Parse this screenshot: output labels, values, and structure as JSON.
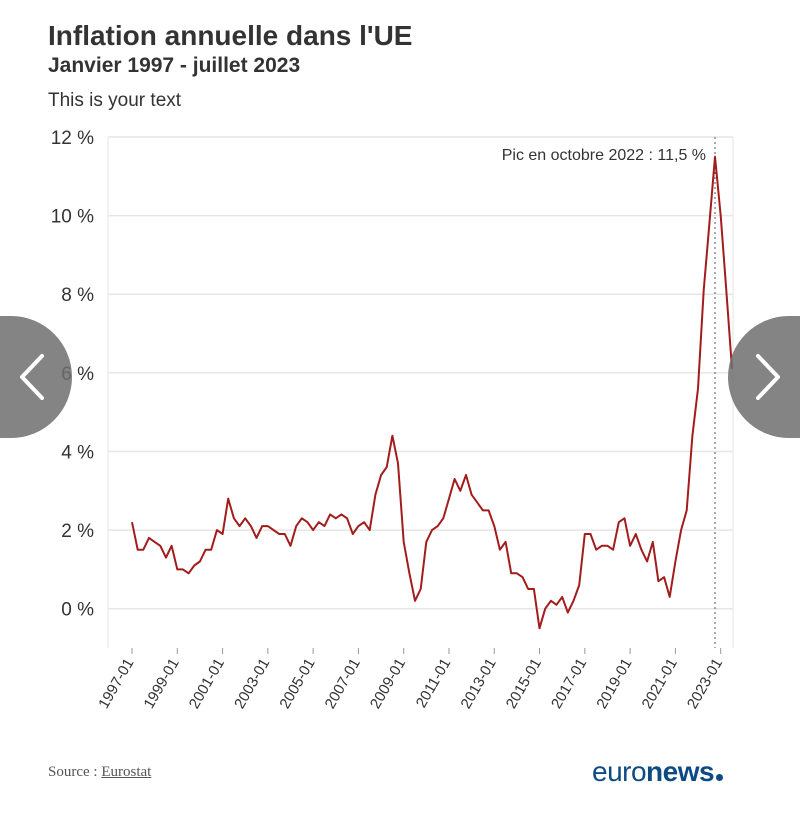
{
  "header": {
    "title": "Inflation annuelle dans l'UE",
    "subtitle": "Janvier 1997 - juillet 2023",
    "note": "This is your text"
  },
  "footer": {
    "source_prefix": "Source : ",
    "source_link": "Eurostat",
    "logo_light": "euro",
    "logo_bold": "news"
  },
  "colors": {
    "line": "#a31c1c",
    "grid": "#e6e6e6",
    "logo": "#0d4a84"
  },
  "navigation": {
    "prev_icon": "chevron-left-icon",
    "next_icon": "chevron-right-icon"
  },
  "chart_data": {
    "type": "line",
    "title": "Inflation annuelle dans l'UE",
    "subtitle": "Janvier 1997 - juillet 2023",
    "xlabel": "",
    "ylabel": "",
    "ylim": [
      -1,
      12
    ],
    "yticks": [
      0,
      2,
      4,
      6,
      8,
      10,
      12
    ],
    "ytick_labels": [
      "0 %",
      "2 %",
      "4 %",
      "6 %",
      "8 %",
      "10 %",
      "12 %"
    ],
    "xtick_labels": [
      "1997-01",
      "1999-01",
      "2001-01",
      "2003-01",
      "2005-01",
      "2007-01",
      "2009-01",
      "2011-01",
      "2013-01",
      "2015-01",
      "2017-01",
      "2019-01",
      "2021-01",
      "2023-01"
    ],
    "grid": true,
    "annotation": {
      "x": "2022-10",
      "y": 11.5,
      "text": "Pic en octobre 2022 : 11,5 %"
    },
    "series": [
      {
        "points": [
          [
            "1997-01",
            2.2
          ],
          [
            "1997-04",
            1.5
          ],
          [
            "1997-07",
            1.5
          ],
          [
            "1997-10",
            1.8
          ],
          [
            "1998-01",
            1.7
          ],
          [
            "1998-04",
            1.6
          ],
          [
            "1998-07",
            1.3
          ],
          [
            "1998-10",
            1.6
          ],
          [
            "1999-01",
            1.0
          ],
          [
            "1999-04",
            1.0
          ],
          [
            "1999-07",
            0.9
          ],
          [
            "1999-10",
            1.1
          ],
          [
            "2000-01",
            1.2
          ],
          [
            "2000-04",
            1.5
          ],
          [
            "2000-07",
            1.5
          ],
          [
            "2000-10",
            2.0
          ],
          [
            "2001-01",
            1.9
          ],
          [
            "2001-04",
            2.8
          ],
          [
            "2001-07",
            2.3
          ],
          [
            "2001-10",
            2.1
          ],
          [
            "2002-01",
            2.3
          ],
          [
            "2002-04",
            2.1
          ],
          [
            "2002-07",
            1.8
          ],
          [
            "2002-10",
            2.1
          ],
          [
            "2003-01",
            2.1
          ],
          [
            "2003-04",
            2.0
          ],
          [
            "2003-07",
            1.9
          ],
          [
            "2003-10",
            1.9
          ],
          [
            "2004-01",
            1.6
          ],
          [
            "2004-04",
            2.1
          ],
          [
            "2004-07",
            2.3
          ],
          [
            "2004-10",
            2.2
          ],
          [
            "2005-01",
            2.0
          ],
          [
            "2005-04",
            2.2
          ],
          [
            "2005-07",
            2.1
          ],
          [
            "2005-10",
            2.4
          ],
          [
            "2006-01",
            2.3
          ],
          [
            "2006-04",
            2.4
          ],
          [
            "2006-07",
            2.3
          ],
          [
            "2006-10",
            1.9
          ],
          [
            "2007-01",
            2.1
          ],
          [
            "2007-04",
            2.2
          ],
          [
            "2007-07",
            2.0
          ],
          [
            "2007-10",
            2.9
          ],
          [
            "2008-01",
            3.4
          ],
          [
            "2008-04",
            3.6
          ],
          [
            "2008-07",
            4.4
          ],
          [
            "2008-10",
            3.7
          ],
          [
            "2009-01",
            1.7
          ],
          [
            "2009-04",
            0.9
          ],
          [
            "2009-07",
            0.2
          ],
          [
            "2009-10",
            0.5
          ],
          [
            "2010-01",
            1.7
          ],
          [
            "2010-04",
            2.0
          ],
          [
            "2010-07",
            2.1
          ],
          [
            "2010-10",
            2.3
          ],
          [
            "2011-01",
            2.8
          ],
          [
            "2011-04",
            3.3
          ],
          [
            "2011-07",
            3.0
          ],
          [
            "2011-10",
            3.4
          ],
          [
            "2012-01",
            2.9
          ],
          [
            "2012-04",
            2.7
          ],
          [
            "2012-07",
            2.5
          ],
          [
            "2012-10",
            2.5
          ],
          [
            "2013-01",
            2.1
          ],
          [
            "2013-04",
            1.5
          ],
          [
            "2013-07",
            1.7
          ],
          [
            "2013-10",
            0.9
          ],
          [
            "2014-01",
            0.9
          ],
          [
            "2014-04",
            0.8
          ],
          [
            "2014-07",
            0.5
          ],
          [
            "2014-10",
            0.5
          ],
          [
            "2015-01",
            -0.5
          ],
          [
            "2015-04",
            0.0
          ],
          [
            "2015-07",
            0.2
          ],
          [
            "2015-10",
            0.1
          ],
          [
            "2016-01",
            0.3
          ],
          [
            "2016-04",
            -0.1
          ],
          [
            "2016-07",
            0.2
          ],
          [
            "2016-10",
            0.6
          ],
          [
            "2017-01",
            1.9
          ],
          [
            "2017-04",
            1.9
          ],
          [
            "2017-07",
            1.5
          ],
          [
            "2017-10",
            1.6
          ],
          [
            "2018-01",
            1.6
          ],
          [
            "2018-04",
            1.5
          ],
          [
            "2018-07",
            2.2
          ],
          [
            "2018-10",
            2.3
          ],
          [
            "2019-01",
            1.6
          ],
          [
            "2019-04",
            1.9
          ],
          [
            "2019-07",
            1.5
          ],
          [
            "2019-10",
            1.2
          ],
          [
            "2020-01",
            1.7
          ],
          [
            "2020-04",
            0.7
          ],
          [
            "2020-07",
            0.8
          ],
          [
            "2020-10",
            0.3
          ],
          [
            "2021-01",
            1.2
          ],
          [
            "2021-04",
            2.0
          ],
          [
            "2021-07",
            2.5
          ],
          [
            "2021-10",
            4.4
          ],
          [
            "2022-01",
            5.6
          ],
          [
            "2022-04",
            8.1
          ],
          [
            "2022-07",
            9.8
          ],
          [
            "2022-10",
            11.5
          ],
          [
            "2023-01",
            10.0
          ],
          [
            "2023-04",
            8.1
          ],
          [
            "2023-07",
            6.1
          ]
        ]
      }
    ]
  }
}
